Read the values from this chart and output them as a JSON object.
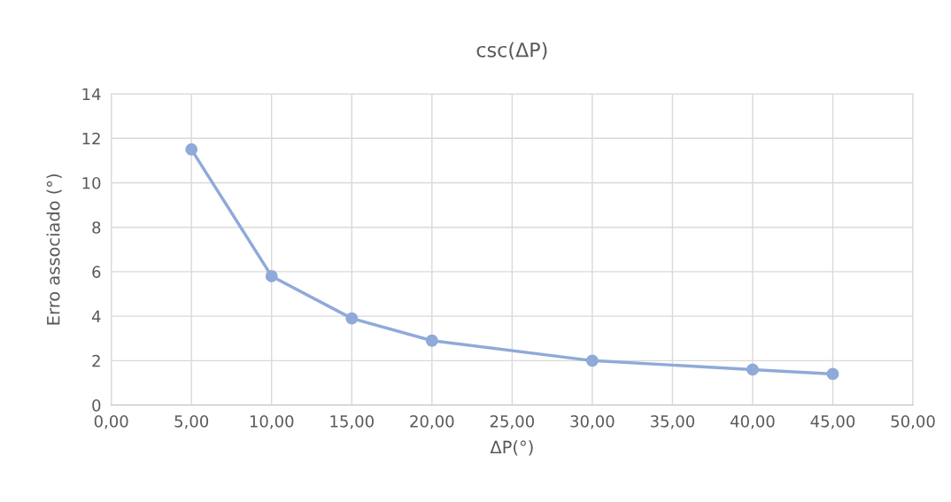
{
  "chart_data": {
    "type": "line",
    "title": "csc(ΔP)",
    "xlabel": "ΔP(°)",
    "ylabel": "Erro associado (°)",
    "x": [
      5,
      10,
      15,
      20,
      30,
      40,
      45
    ],
    "series": [
      {
        "color": "#8faad9",
        "values": [
          11.5,
          5.8,
          3.9,
          2.9,
          2.0,
          1.6,
          1.4
        ]
      }
    ],
    "xlim": [
      0,
      50
    ],
    "xticks": [
      {
        "value": 0,
        "label": "0,00"
      },
      {
        "value": 5,
        "label": "5,00"
      },
      {
        "value": 10,
        "label": "10,00"
      },
      {
        "value": 15,
        "label": "15,00"
      },
      {
        "value": 20,
        "label": "20,00"
      },
      {
        "value": 25,
        "label": "25,00"
      },
      {
        "value": 30,
        "label": "30,00"
      },
      {
        "value": 35,
        "label": "35,00"
      },
      {
        "value": 40,
        "label": "40,00"
      },
      {
        "value": 45,
        "label": "45,00"
      },
      {
        "value": 50,
        "label": "50,00"
      }
    ],
    "ylim": [
      0,
      14
    ],
    "yticks": [
      0,
      2,
      4,
      6,
      8,
      10,
      12,
      14
    ],
    "grid": true,
    "marker": "circle",
    "line_style": "solid"
  }
}
